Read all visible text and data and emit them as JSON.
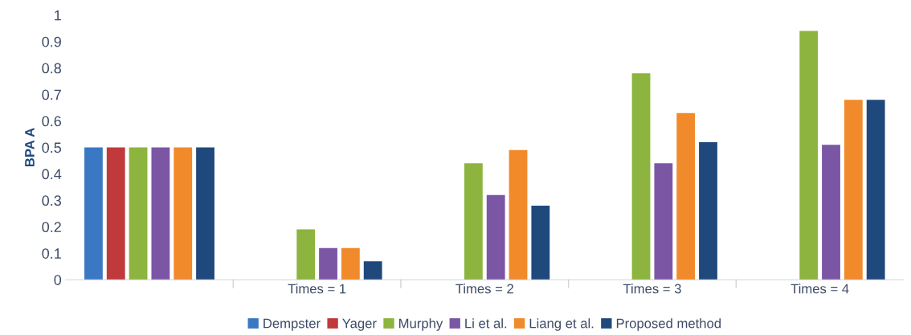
{
  "chart_data": {
    "type": "bar",
    "ylabel": "BPA A",
    "categories": [
      null,
      "Times = 1",
      "Times = 2",
      "Times = 3",
      "Times = 4"
    ],
    "series": [
      {
        "name": "Dempster",
        "color": "#3a78c3",
        "values": [
          0.5,
          0,
          0,
          0,
          0
        ]
      },
      {
        "name": "Yager",
        "color": "#c0393b",
        "values": [
          0.5,
          0,
          0,
          0,
          0
        ]
      },
      {
        "name": "Murphy",
        "color": "#8db43e",
        "values": [
          0.5,
          0.19,
          0.44,
          0.78,
          0.94
        ]
      },
      {
        "name": "Li et al.",
        "color": "#7b56a5",
        "values": [
          0.5,
          0.12,
          0.32,
          0.44,
          0.51
        ]
      },
      {
        "name": "Liang et al.",
        "color": "#f08a2a",
        "values": [
          0.5,
          0.12,
          0.49,
          0.63,
          0.68
        ]
      },
      {
        "name": "Proposed method",
        "color": "#1f497d",
        "values": [
          0.5,
          0.07,
          0.28,
          0.52,
          0.68
        ]
      }
    ],
    "ylim": [
      0,
      1
    ],
    "yticks": [
      0,
      0.1,
      0.2,
      0.3,
      0.4,
      0.5,
      0.6,
      0.7,
      0.8,
      0.9,
      1
    ],
    "grid": false,
    "legend": "bottom"
  }
}
